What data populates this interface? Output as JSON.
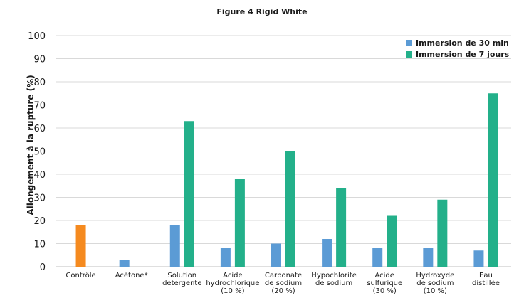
{
  "chart_data": {
    "type": "bar",
    "title": "Figure 4 Rigid White",
    "ylabel": "Allongement à la rupture (%)",
    "xlabel": "",
    "ylim": [
      0,
      100
    ],
    "yticks": [
      0,
      10,
      20,
      30,
      40,
      50,
      60,
      70,
      80,
      90,
      100
    ],
    "grid": true,
    "legend_position": "top-right",
    "categories": [
      [
        "Contrôle"
      ],
      [
        "Acétone*"
      ],
      [
        "Solution",
        "détergente"
      ],
      [
        "Acide",
        "hydrochlorique",
        "(10 %)"
      ],
      [
        "Carbonate",
        "de sodium",
        "(20 %)"
      ],
      [
        "Hypochlorite",
        "de sodium"
      ],
      [
        "Acide",
        "sulfurique",
        "(30 %)"
      ],
      [
        "Hydroxyde",
        "de sodium",
        "(10 %)"
      ],
      [
        "Eau",
        "distillée"
      ]
    ],
    "control": {
      "value": 18,
      "color": "#f58a1f"
    },
    "series": [
      {
        "name": "Immersion de 30 min",
        "color": "#5b9bd5",
        "values": [
          null,
          3,
          18,
          8,
          10,
          12,
          8,
          8,
          7
        ]
      },
      {
        "name": "Immersion de 7 jours",
        "color": "#23b08a",
        "values": [
          null,
          null,
          63,
          38,
          50,
          34,
          22,
          29,
          75
        ]
      }
    ]
  }
}
